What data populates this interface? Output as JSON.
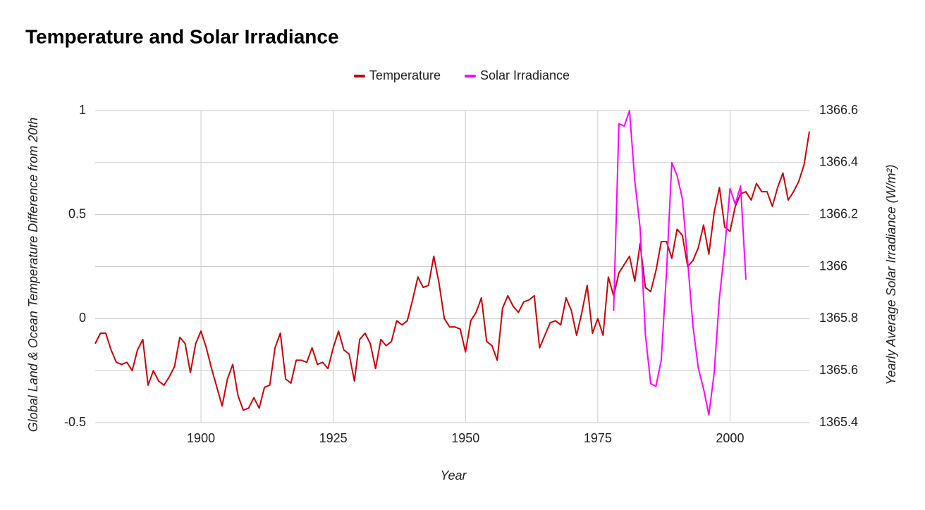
{
  "chart_data": {
    "type": "line",
    "title": "Temperature and Solar Irradiance",
    "x_label": "Year",
    "y_label": "Global Land & Ocean Temperature Difference from 20th",
    "y2_label": "Yearly Average Solar Irradiance (W/m²)",
    "x": [
      1880,
      1881,
      1882,
      1883,
      1884,
      1885,
      1886,
      1887,
      1888,
      1889,
      1890,
      1891,
      1892,
      1893,
      1894,
      1895,
      1896,
      1897,
      1898,
      1899,
      1900,
      1901,
      1902,
      1903,
      1904,
      1905,
      1906,
      1907,
      1908,
      1909,
      1910,
      1911,
      1912,
      1913,
      1914,
      1915,
      1916,
      1917,
      1918,
      1919,
      1920,
      1921,
      1922,
      1923,
      1924,
      1925,
      1926,
      1927,
      1928,
      1929,
      1930,
      1931,
      1932,
      1933,
      1934,
      1935,
      1936,
      1937,
      1938,
      1939,
      1940,
      1941,
      1942,
      1943,
      1944,
      1945,
      1946,
      1947,
      1948,
      1949,
      1950,
      1951,
      1952,
      1953,
      1954,
      1955,
      1956,
      1957,
      1958,
      1959,
      1960,
      1961,
      1962,
      1963,
      1964,
      1965,
      1966,
      1967,
      1968,
      1969,
      1970,
      1971,
      1972,
      1973,
      1974,
      1975,
      1976,
      1977,
      1978,
      1979,
      1980,
      1981,
      1982,
      1983,
      1984,
      1985,
      1986,
      1987,
      1988,
      1989,
      1990,
      1991,
      1992,
      1993,
      1994,
      1995,
      1996,
      1997,
      1998,
      1999,
      2000,
      2001,
      2002,
      2003,
      2004,
      2005,
      2006,
      2007,
      2008,
      2009,
      2010,
      2011,
      2012,
      2013,
      2014,
      2015
    ],
    "series": [
      {
        "name": "Temperature",
        "color": "#cc0000",
        "axis": "y",
        "values": [
          -0.12,
          -0.07,
          -0.07,
          -0.15,
          -0.21,
          -0.22,
          -0.21,
          -0.25,
          -0.15,
          -0.1,
          -0.32,
          -0.25,
          -0.3,
          -0.32,
          -0.28,
          -0.23,
          -0.09,
          -0.12,
          -0.26,
          -0.12,
          -0.06,
          -0.14,
          -0.24,
          -0.33,
          -0.42,
          -0.29,
          -0.22,
          -0.37,
          -0.44,
          -0.43,
          -0.38,
          -0.43,
          -0.33,
          -0.32,
          -0.14,
          -0.07,
          -0.29,
          -0.31,
          -0.2,
          -0.2,
          -0.21,
          -0.14,
          -0.22,
          -0.21,
          -0.24,
          -0.14,
          -0.06,
          -0.15,
          -0.17,
          -0.3,
          -0.1,
          -0.07,
          -0.12,
          -0.24,
          -0.1,
          -0.13,
          -0.11,
          -0.01,
          -0.03,
          -0.01,
          0.09,
          0.2,
          0.15,
          0.16,
          0.3,
          0.17,
          0.0,
          -0.04,
          -0.04,
          -0.05,
          -0.16,
          -0.01,
          0.03,
          0.1,
          -0.11,
          -0.13,
          -0.2,
          0.05,
          0.11,
          0.06,
          0.03,
          0.08,
          0.09,
          0.11,
          -0.14,
          -0.08,
          -0.02,
          -0.01,
          -0.03,
          0.1,
          0.04,
          -0.08,
          0.03,
          0.16,
          -0.07,
          0.0,
          -0.08,
          0.2,
          0.11,
          0.22,
          0.26,
          0.3,
          0.18,
          0.36,
          0.15,
          0.13,
          0.23,
          0.37,
          0.37,
          0.29,
          0.43,
          0.4,
          0.25,
          0.28,
          0.34,
          0.45,
          0.31,
          0.51,
          0.63,
          0.44,
          0.42,
          0.54,
          0.6,
          0.61,
          0.57,
          0.65,
          0.61,
          0.61,
          0.54,
          0.63,
          0.7,
          0.57,
          0.61,
          0.66,
          0.74,
          0.9
        ]
      },
      {
        "name": "Solar Irradiance",
        "color": "#ff00ff",
        "axis": "y2",
        "values": [
          null,
          null,
          null,
          null,
          null,
          null,
          null,
          null,
          null,
          null,
          null,
          null,
          null,
          null,
          null,
          null,
          null,
          null,
          null,
          null,
          null,
          null,
          null,
          null,
          null,
          null,
          null,
          null,
          null,
          null,
          null,
          null,
          null,
          null,
          null,
          null,
          null,
          null,
          null,
          null,
          null,
          null,
          null,
          null,
          null,
          null,
          null,
          null,
          null,
          null,
          null,
          null,
          null,
          null,
          null,
          null,
          null,
          null,
          null,
          null,
          null,
          null,
          null,
          null,
          null,
          null,
          null,
          null,
          null,
          null,
          null,
          null,
          null,
          null,
          null,
          null,
          null,
          null,
          null,
          null,
          null,
          null,
          null,
          null,
          null,
          null,
          null,
          null,
          null,
          null,
          null,
          null,
          null,
          null,
          null,
          null,
          null,
          null,
          1365.83,
          1366.55,
          1366.54,
          1366.6,
          1366.33,
          1366.15,
          1365.74,
          1365.55,
          1365.54,
          1365.64,
          1365.98,
          1366.4,
          1366.35,
          1366.26,
          1366.02,
          1365.77,
          1365.61,
          1365.53,
          1365.43,
          1365.59,
          1365.88,
          1366.07,
          1366.3,
          1366.24,
          1366.31,
          1365.95,
          null,
          null,
          null,
          null,
          null,
          null,
          null,
          null,
          null,
          null,
          null,
          null
        ]
      }
    ],
    "xlim": [
      1880,
      2015
    ],
    "xticks": [
      1900,
      1925,
      1950,
      1975,
      2000
    ],
    "ylim": [
      -0.5,
      1
    ],
    "yticks": [
      -0.5,
      0,
      0.5,
      1
    ],
    "y2lim": [
      1365.4,
      1366.6
    ],
    "y2ticks": [
      1365.4,
      1365.6,
      1365.8,
      1366,
      1366.2,
      1366.4,
      1366.6
    ],
    "grid": true,
    "legend": "top"
  }
}
